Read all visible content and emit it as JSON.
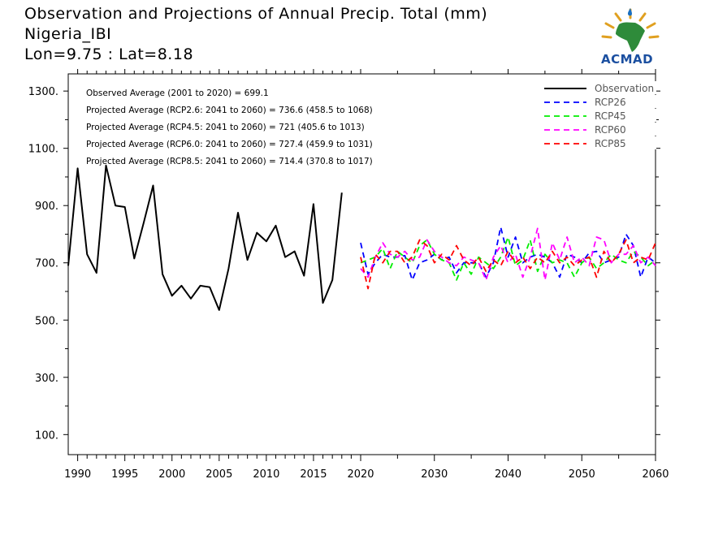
{
  "header": {
    "title": "Observation and Projections of Annual Precip. Total (mm)",
    "location": "Nigeria_IBI",
    "coords": "Lon=9.75 : Lat=8.18"
  },
  "logo": {
    "text": "ACMAD",
    "icon": "acmad-africa-logo-icon"
  },
  "annotations": [
    "Observed Average (2001 to 2020) = 699.1",
    "Projected Average (RCP2.6: 2041 to 2060) = 736.6 (458.5 to 1068)",
    "Projected Average (RCP4.5: 2041 to 2060) = 721 (405.6 to 1013)",
    "Projected Average (RCP6.0: 2041 to 2060) = 727.4 (459.9 to 1031)",
    "Projected Average (RCP8.5: 2041 to 2060) = 714.4 (370.8 to 1017)"
  ],
  "chart_data": {
    "type": "line",
    "title": "Observation and Projections of Annual Precip. Total (mm)",
    "xlabel": "",
    "ylabel": "",
    "xlim": [
      1989,
      2060
    ],
    "ylim": [
      30,
      1360
    ],
    "grid": false,
    "legend_position": "top-right",
    "x_ticks": [
      1990,
      1995,
      2000,
      2005,
      2010,
      2015,
      2020,
      2030,
      2040,
      2050,
      2060
    ],
    "y_ticks": [
      100,
      300,
      500,
      700,
      900,
      1100,
      1300
    ],
    "y_tick_labels": [
      "100.",
      "300.",
      "500.",
      "700.",
      "900.",
      "1100.",
      "1300."
    ],
    "series": [
      {
        "name": "Observation",
        "color": "#000000",
        "style": "solid",
        "x": [
          1989,
          1990,
          1991,
          1992,
          1993,
          1994,
          1995,
          1996,
          1997,
          1998,
          1999,
          2000,
          2001,
          2002,
          2003,
          2004,
          2005,
          2006,
          2007,
          2008,
          2009,
          2010,
          2011,
          2012,
          2013,
          2014,
          2015,
          2016,
          2017,
          2018,
          2019,
          2020
        ],
        "y": [
          690,
          1030,
          730,
          665,
          1040,
          900,
          895,
          715,
          840,
          970,
          660,
          585,
          620,
          575,
          620,
          615,
          535,
          680,
          875,
          710,
          805,
          775,
          830,
          720,
          740,
          655,
          905,
          560,
          640,
          945,
          null,
          null
        ]
      },
      {
        "name": "RCP26",
        "color": "#0000ff",
        "style": "dashed",
        "x": [
          2020,
          2021,
          2022,
          2023,
          2024,
          2025,
          2026,
          2027,
          2028,
          2029,
          2030,
          2031,
          2032,
          2033,
          2034,
          2035,
          2036,
          2037,
          2038,
          2039,
          2040,
          2041,
          2042,
          2043,
          2044,
          2045,
          2046,
          2047,
          2048,
          2049,
          2050,
          2051,
          2052,
          2053,
          2054,
          2055,
          2056,
          2057,
          2058,
          2059,
          2060
        ],
        "y": [
          770,
          660,
          700,
          730,
          720,
          720,
          725,
          640,
          700,
          710,
          730,
          710,
          720,
          665,
          700,
          700,
          700,
          650,
          700,
          825,
          720,
          790,
          700,
          720,
          730,
          720,
          700,
          650,
          730,
          720,
          700,
          735,
          740,
          700,
          710,
          720,
          800,
          760,
          650,
          720,
          700
        ]
      },
      {
        "name": "RCP45",
        "color": "#00ee00",
        "style": "dashed",
        "x": [
          2020,
          2021,
          2022,
          2023,
          2024,
          2025,
          2026,
          2027,
          2028,
          2029,
          2030,
          2031,
          2032,
          2033,
          2034,
          2035,
          2036,
          2037,
          2038,
          2039,
          2040,
          2041,
          2042,
          2043,
          2044,
          2045,
          2046,
          2047,
          2048,
          2049,
          2050,
          2051,
          2052,
          2053,
          2054,
          2055,
          2056,
          2057,
          2058,
          2059,
          2060
        ],
        "y": [
          700,
          710,
          720,
          750,
          680,
          740,
          720,
          700,
          760,
          780,
          730,
          710,
          700,
          640,
          700,
          660,
          720,
          700,
          680,
          720,
          790,
          690,
          710,
          780,
          670,
          730,
          700,
          710,
          700,
          650,
          700,
          720,
          680,
          700,
          730,
          710,
          700,
          740,
          720,
          690,
          710
        ]
      },
      {
        "name": "RCP60",
        "color": "#ff00ff",
        "style": "dashed",
        "x": [
          2020,
          2021,
          2022,
          2023,
          2024,
          2025,
          2026,
          2027,
          2028,
          2029,
          2030,
          2031,
          2032,
          2033,
          2034,
          2035,
          2036,
          2037,
          2038,
          2039,
          2040,
          2041,
          2042,
          2043,
          2044,
          2045,
          2046,
          2047,
          2048,
          2049,
          2050,
          2051,
          2052,
          2053,
          2054,
          2055,
          2056,
          2057,
          2058,
          2059,
          2060
        ],
        "y": [
          680,
          650,
          720,
          770,
          730,
          720,
          740,
          710,
          720,
          780,
          740,
          720,
          700,
          690,
          720,
          710,
          700,
          640,
          720,
          760,
          700,
          730,
          650,
          720,
          820,
          640,
          770,
          710,
          790,
          700,
          720,
          690,
          790,
          780,
          700,
          730,
          730,
          760,
          700,
          720,
          690
        ]
      },
      {
        "name": "RCP85",
        "color": "#ff0000",
        "style": "dashed",
        "x": [
          2020,
          2021,
          2022,
          2023,
          2024,
          2025,
          2026,
          2027,
          2028,
          2029,
          2030,
          2031,
          2032,
          2033,
          2034,
          2035,
          2036,
          2037,
          2038,
          2039,
          2040,
          2041,
          2042,
          2043,
          2044,
          2045,
          2046,
          2047,
          2048,
          2049,
          2050,
          2051,
          2052,
          2053,
          2054,
          2055,
          2056,
          2057,
          2058,
          2059,
          2060
        ],
        "y": [
          720,
          610,
          730,
          700,
          740,
          740,
          700,
          720,
          780,
          760,
          700,
          730,
          710,
          760,
          710,
          690,
          720,
          670,
          710,
          690,
          740,
          700,
          720,
          680,
          720,
          700,
          740,
          700,
          720,
          690,
          710,
          720,
          650,
          740,
          700,
          730,
          780,
          700,
          720,
          710,
          770
        ]
      }
    ]
  }
}
